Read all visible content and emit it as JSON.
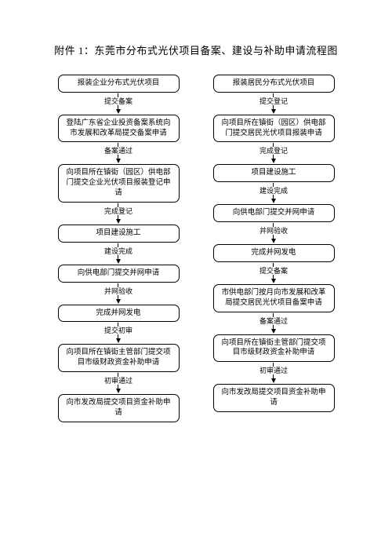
{
  "title": "附件 1：东莞市分布式光伏项目备案、建设与补助申请流程图",
  "left": {
    "nodes": [
      {
        "text": "报装企业分布式光伏项目",
        "tall": false
      },
      {
        "text": "登陆广东省企业投资备案系统向市发展和改革局提交备案申请",
        "tall": true
      },
      {
        "text": "向项目所在镇街（园区）供电部门提交企业光伏项目报装登记申请",
        "tall": true
      },
      {
        "text": "项目建设施工",
        "tall": false
      },
      {
        "text": "向供电部门提交并网申请",
        "tall": false
      },
      {
        "text": "完成并网发电",
        "tall": false
      },
      {
        "text": "向项目所在镇街主管部门提交项目市级财政资金补助申请",
        "tall": true
      },
      {
        "text": "向市发改局提交项目资金补助申请",
        "tall": false
      }
    ],
    "arrows": [
      "提交备案",
      "备案通过",
      "完成登记",
      "建设完成",
      "并网验收",
      "提交初审",
      "初审通过"
    ]
  },
  "right": {
    "nodes": [
      {
        "text": "报装居民分布式光伏项目",
        "tall": false
      },
      {
        "text": "向项目所在镇街（园区）供电部门提交居民光伏项目报装申请",
        "tall": true
      },
      {
        "text": "项目建设施工",
        "tall": false
      },
      {
        "text": "向供电部门提交并网申请",
        "tall": false
      },
      {
        "text": "完成并网发电",
        "tall": false
      },
      {
        "text": "市供电部门按月向市发展和改革局提交居民光伏项目备案申请",
        "tall": true
      },
      {
        "text": "向项目所在镇街主管部门提交项目市级财政资金补助申请",
        "tall": true
      },
      {
        "text": "向市发改局提交项目资金补助申请",
        "tall": false
      }
    ],
    "arrows": [
      "提交登记",
      "完成登记",
      "建设完成",
      "并网验收",
      "提交备案",
      "备案通过",
      "初审通过"
    ]
  }
}
